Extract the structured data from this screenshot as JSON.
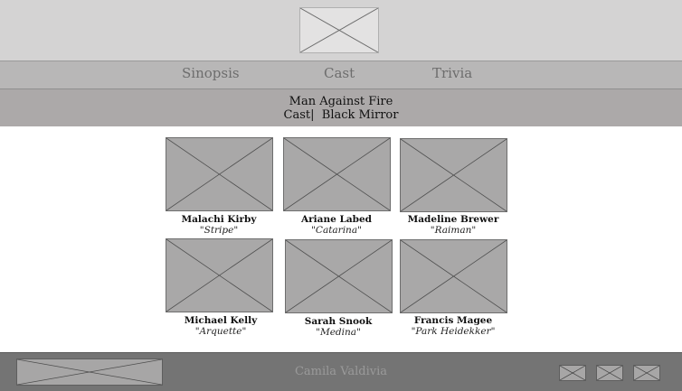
{
  "nav": {
    "items": [
      "Sinopsis",
      "Cast",
      "Trivia"
    ]
  },
  "episode": {
    "title": "Man Against Fire",
    "subtitle": "Cast|  Black Mirror"
  },
  "cast": [
    {
      "name": "Malachi Kirby",
      "role": "\"Stripe\""
    },
    {
      "name": "Ariane Labed",
      "role": "\"Catarina\""
    },
    {
      "name": "Madeline Brewer",
      "role": "\"Raiman\""
    },
    {
      "name": "Michael Kelly",
      "role": "\"Arquette\""
    },
    {
      "name": "Sarah Snook",
      "role": "\"Medina\""
    },
    {
      "name": "Francis Magee",
      "role": "\"Park Heidekker\""
    }
  ],
  "footer": {
    "author": "Camila Valdivia"
  },
  "colors": {
    "header": "#d4d3d3",
    "nav": "#b8b7b7",
    "subheader": "#aca9a9",
    "footer": "#747474",
    "placeholder": "#a9a8a8"
  }
}
